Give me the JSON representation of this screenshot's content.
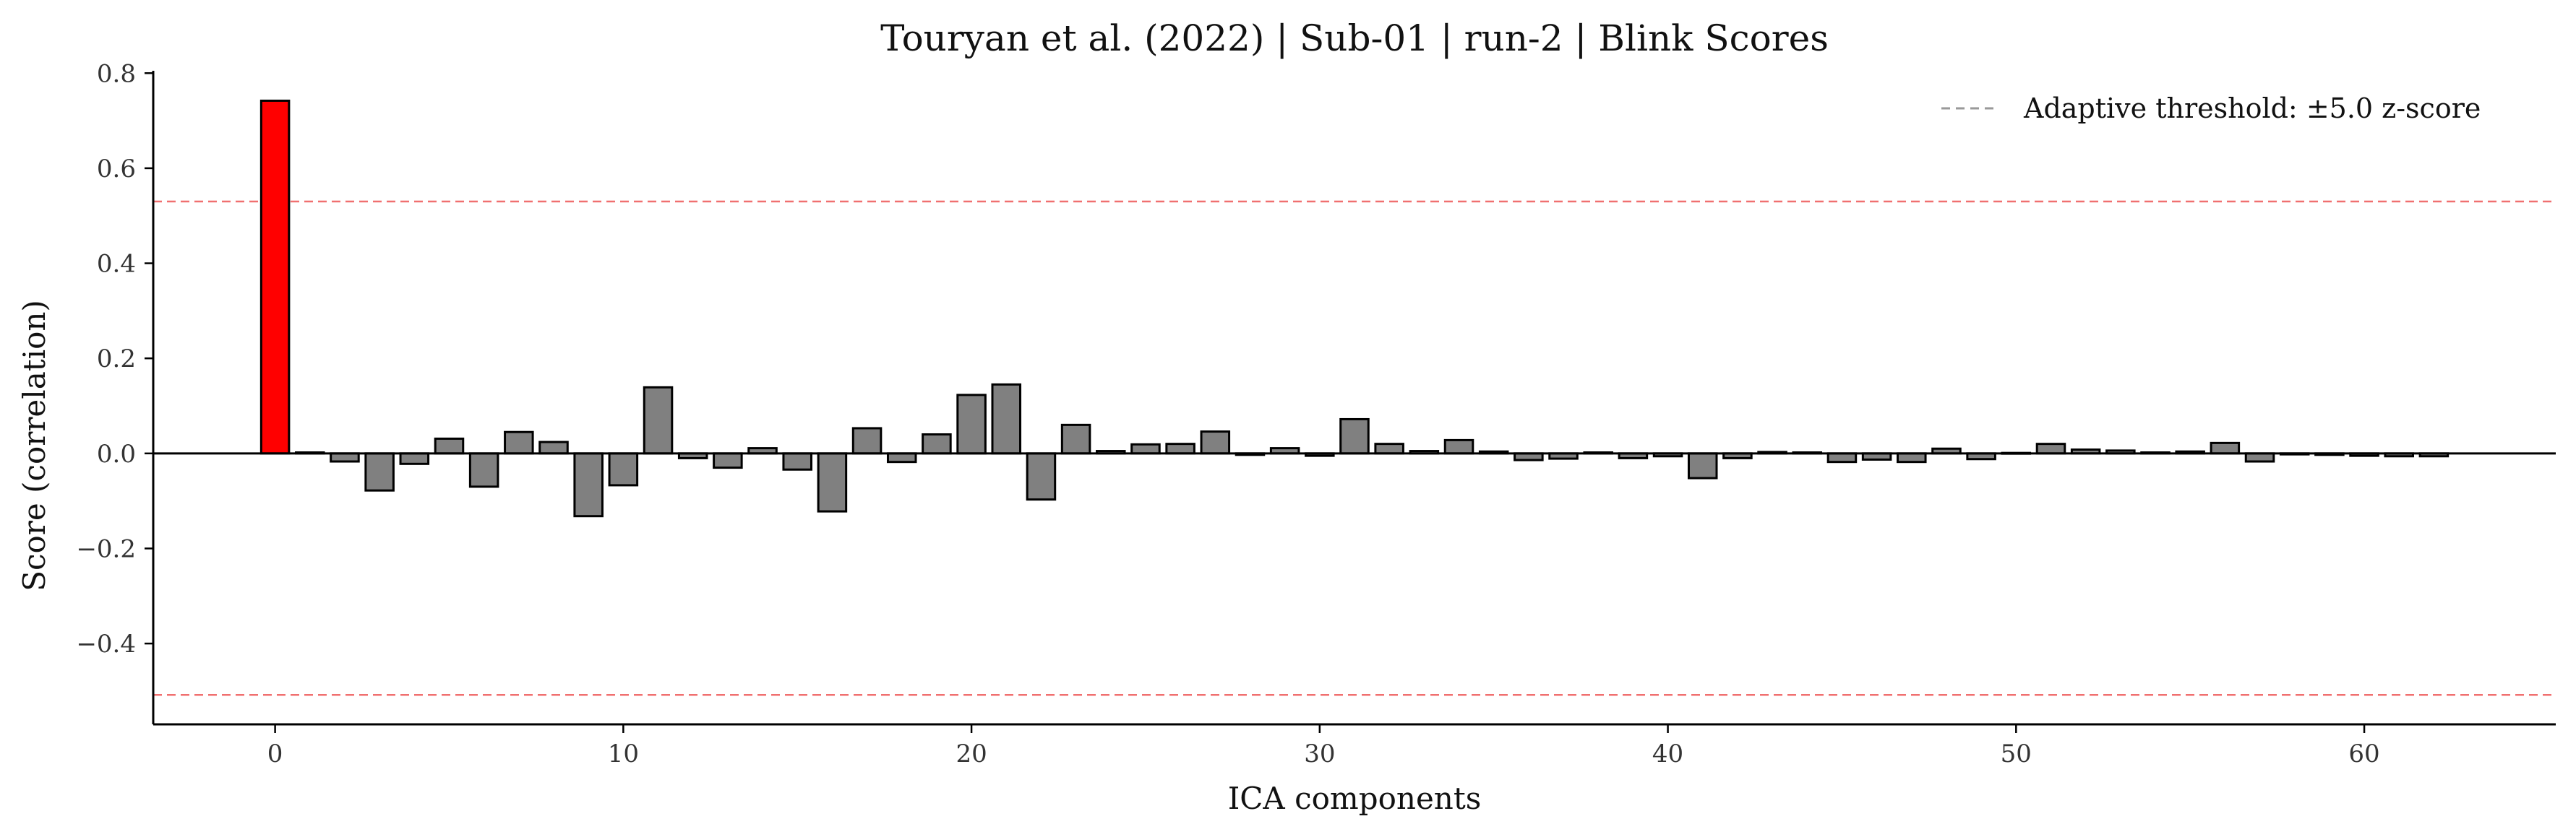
{
  "chart_data": {
    "type": "bar",
    "title": "Touryan et al. (2022) | Sub-01 | run-2 | Blink Scores",
    "xlabel": "ICA components",
    "ylabel": "Score (correlation)",
    "xlim": [
      -3.5,
      65.5
    ],
    "ylim": [
      -0.57,
      0.805
    ],
    "x_ticks": [
      0,
      10,
      20,
      30,
      40,
      50,
      60
    ],
    "x_tick_labels": [
      "0",
      "10",
      "20",
      "30",
      "40",
      "50",
      "60"
    ],
    "y_ticks": [
      -0.4,
      -0.2,
      0.0,
      0.2,
      0.4,
      0.6,
      0.8
    ],
    "y_tick_labels": [
      "−0.4",
      "−0.2",
      "0.0",
      "0.2",
      "0.4",
      "0.6",
      "0.8"
    ],
    "threshold_upper": 0.53,
    "threshold_lower": -0.508,
    "legend": {
      "label": "Adaptive threshold: ±5.0 z-score",
      "placement": "top-right"
    },
    "grid": false,
    "colors": {
      "bar_default": "#808080",
      "bar_flagged": "#ff0000",
      "bar_edge": "#000000",
      "threshold_line": "#f07070",
      "legend_line": "#999999"
    },
    "flagged_components": [
      0
    ],
    "x": [
      0,
      1,
      2,
      3,
      4,
      5,
      6,
      7,
      8,
      9,
      10,
      11,
      12,
      13,
      14,
      15,
      16,
      17,
      18,
      19,
      20,
      21,
      22,
      23,
      24,
      25,
      26,
      27,
      28,
      29,
      30,
      31,
      32,
      33,
      34,
      35,
      36,
      37,
      38,
      39,
      40,
      41,
      42,
      43,
      44,
      45,
      46,
      47,
      48,
      49,
      50,
      51,
      52,
      53,
      54,
      55,
      56,
      57,
      58,
      59,
      60,
      61,
      62
    ],
    "values": [
      0.742,
      0.002,
      -0.017,
      -0.078,
      -0.022,
      0.031,
      -0.07,
      0.045,
      0.024,
      -0.132,
      -0.067,
      0.139,
      -0.01,
      -0.03,
      0.011,
      -0.034,
      -0.122,
      0.053,
      -0.018,
      0.04,
      0.123,
      0.145,
      -0.097,
      0.06,
      0.005,
      0.019,
      0.02,
      0.046,
      -0.003,
      0.011,
      -0.005,
      0.072,
      0.02,
      0.005,
      0.028,
      0.004,
      -0.014,
      -0.011,
      0.002,
      -0.01,
      -0.006,
      -0.052,
      -0.01,
      0.003,
      0.002,
      -0.018,
      -0.013,
      -0.018,
      0.01,
      -0.012,
      0.001,
      0.02,
      0.008,
      0.006,
      0.002,
      0.004,
      0.022,
      -0.017,
      -0.002,
      -0.003,
      -0.005,
      -0.006,
      -0.006
    ]
  }
}
